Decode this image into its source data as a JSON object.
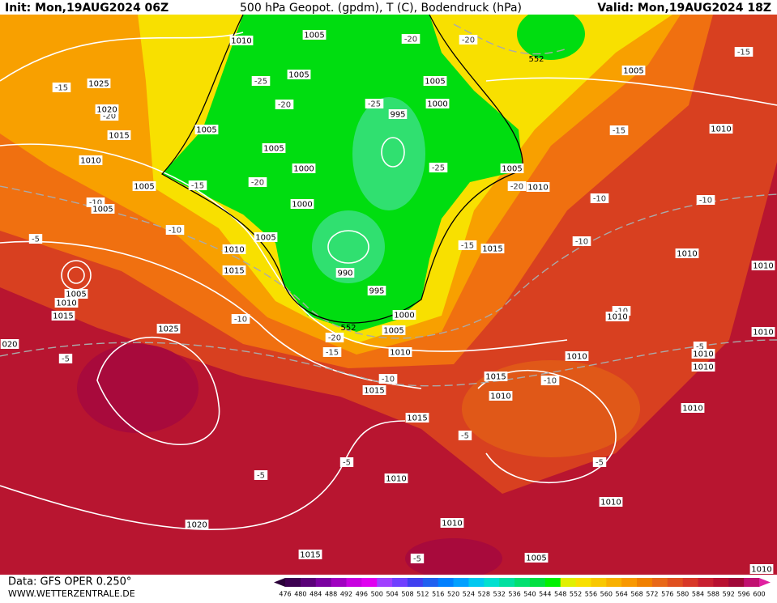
{
  "header": {
    "init": "Init: Mon,19AUG2024 06Z",
    "title": "500 hPa Geopot. (gpdm), T (C), Bodendruck (hPa)",
    "valid": "Valid: Mon,19AUG2024 18Z"
  },
  "footer": {
    "data": "Data: GFS OPER 0.250°",
    "site": "WWW.WETTERZENTRALE.DE"
  },
  "pressure_labels": [
    "1010",
    "1005",
    "1025",
    "1020",
    "1015",
    "1010",
    "1005",
    "1005",
    "1005",
    "1005",
    "1005",
    "1000",
    "1000",
    "1005",
    "1010",
    "1015",
    "1005",
    "1010",
    "1015",
    "1025",
    "020",
    "995",
    "990",
    "995",
    "1000",
    "1005",
    "1010",
    "1015",
    "1015",
    "1005",
    "1000",
    "1005",
    "1010",
    "1015",
    "1010",
    "1015",
    "1010",
    "1005",
    "1010",
    "1010",
    "1010",
    "1010",
    "1010",
    "1010",
    "1010",
    "1010",
    "1010",
    "1010",
    "1010",
    "1020",
    "1015",
    "1005",
    "1010"
  ],
  "temperature_labels": [
    "-20",
    "-20",
    "-15",
    "-15",
    "-20",
    "-25",
    "-20",
    "-25",
    "-15",
    "-20",
    "-15",
    "-25",
    "-20",
    "-10",
    "-10",
    "-10",
    "-5",
    "-10",
    "-15",
    "-10",
    "-10",
    "-10",
    "-20",
    "-15",
    "-5",
    "-5",
    "-10",
    "-10",
    "-5",
    "-5",
    "-5",
    "-5",
    "-5"
  ],
  "height_labels": [
    "552",
    "552"
  ],
  "colorbar": {
    "ticks": [
      476,
      480,
      484,
      488,
      492,
      496,
      500,
      504,
      508,
      512,
      516,
      520,
      524,
      528,
      532,
      536,
      540,
      544,
      548,
      552,
      556,
      560,
      564,
      568,
      572,
      576,
      580,
      584,
      588,
      592,
      596,
      600
    ],
    "colors": [
      "#3c0050",
      "#5a0078",
      "#7a00a0",
      "#a000c0",
      "#c800e0",
      "#e000f0",
      "#a040ff",
      "#7040ff",
      "#4040f0",
      "#2060f0",
      "#0080ff",
      "#00a0ff",
      "#00c8f0",
      "#00e0d0",
      "#00e0a0",
      "#00e070",
      "#00e040",
      "#00f000",
      "#e0f000",
      "#f8e000",
      "#f8c800",
      "#f8b000",
      "#f89800",
      "#f08000",
      "#e86818",
      "#e05020",
      "#d83828",
      "#c82030",
      "#b81030",
      "#a00838",
      "#c01070"
    ]
  }
}
